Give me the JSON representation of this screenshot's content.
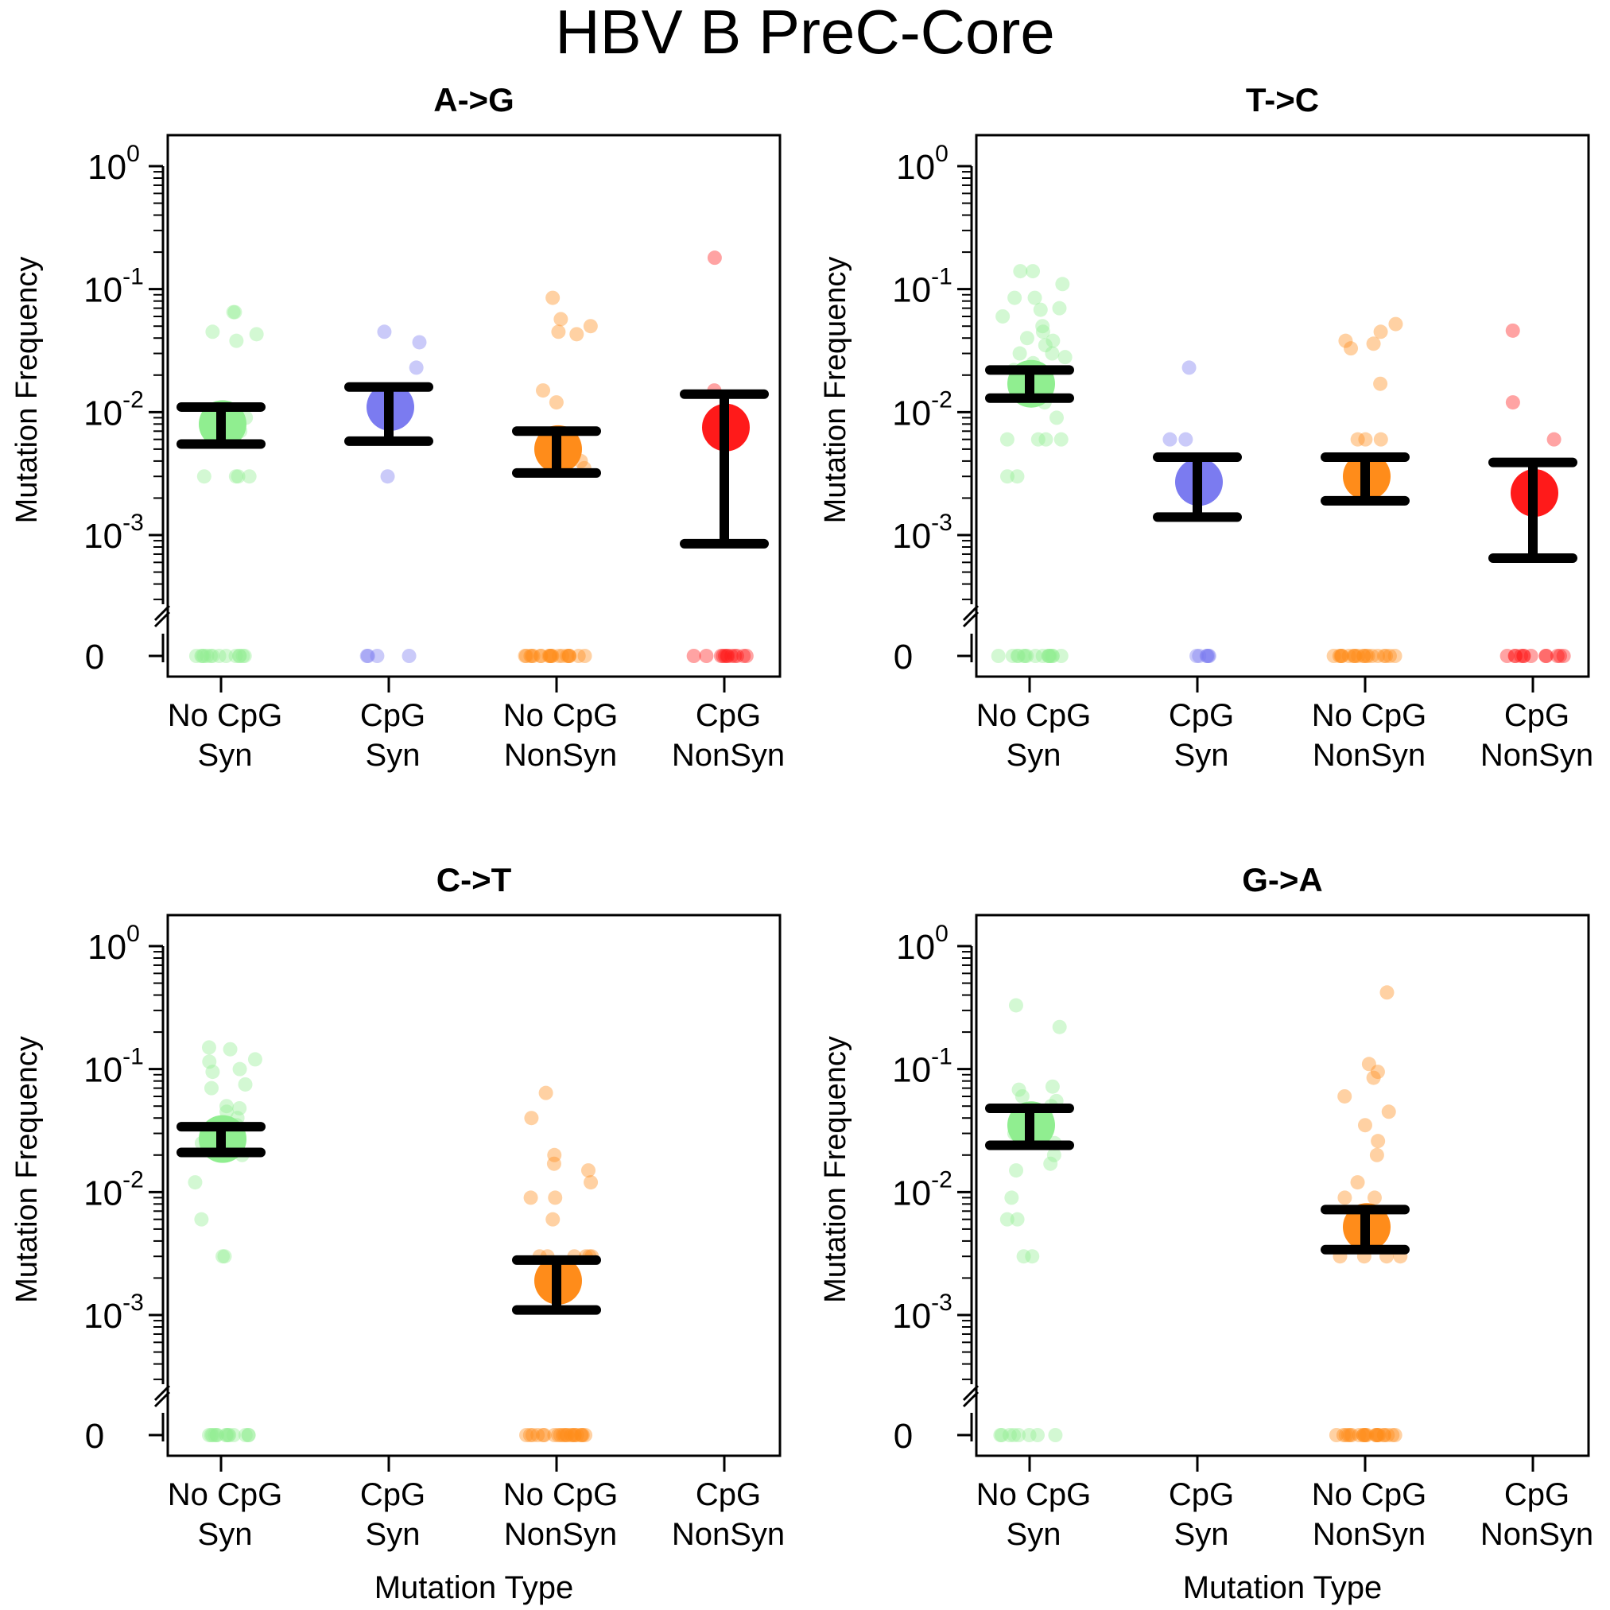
{
  "figure": {
    "title": "HBV B PreC-Core"
  },
  "style": {
    "colors": {
      "No CpG Syn": "#90ee90",
      "CpG Syn": "#7b7bf0",
      "No CpG NonSyn": "#ff8c1a",
      "CpG NonSyn": "#ff1a1a",
      "error_bar": "#000000"
    }
  },
  "chart_data": [
    {
      "type": "scatter",
      "title": "A->G",
      "xlabel": "",
      "ylabel": "Mutation Frequency",
      "yscale": "log",
      "ylim": [
        0.0003,
        1
      ],
      "yticks": [
        {
          "label_base": "10",
          "label_exp": "0"
        },
        {
          "label_base": "10",
          "label_exp": "-1"
        },
        {
          "label_base": "10",
          "label_exp": "-2"
        },
        {
          "label_base": "10",
          "label_exp": "-3"
        }
      ],
      "zero_label": "0",
      "categories": [
        "No CpG\nSyn",
        "CpG\nSyn",
        "No CpG\nNonSyn",
        "CpG\nNonSyn"
      ],
      "groups": [
        {
          "category": "No CpG Syn",
          "mean": 0.008,
          "ci": [
            0.0055,
            0.011
          ],
          "points": [
            0.065,
            0.045,
            0.065,
            0.043,
            0.038,
            0.003,
            0.003,
            0.003,
            0.003,
            0.009,
            0.007
          ],
          "zeros": 14
        },
        {
          "category": "CpG Syn",
          "mean": 0.011,
          "ci": [
            0.0058,
            0.016
          ],
          "points": [
            0.045,
            0.037,
            0.023,
            0.003,
            0.009
          ],
          "zeros": 4
        },
        {
          "category": "No CpG NonSyn",
          "mean": 0.005,
          "ci": [
            0.0032,
            0.007
          ],
          "points": [
            0.085,
            0.057,
            0.05,
            0.045,
            0.043,
            0.015,
            0.012,
            0.0035,
            0.004,
            0.006
          ],
          "zeros": 20
        },
        {
          "category": "CpG NonSyn",
          "mean": 0.0075,
          "ci": [
            0.00085,
            0.014
          ],
          "points": [
            0.18,
            0.015,
            0.009
          ],
          "zeros": 12
        }
      ]
    },
    {
      "type": "scatter",
      "title": "T->C",
      "xlabel": "",
      "ylabel": "Mutation Frequency",
      "yscale": "log",
      "ylim": [
        0.0003,
        1
      ],
      "yticks": [
        {
          "label_base": "10",
          "label_exp": "0"
        },
        {
          "label_base": "10",
          "label_exp": "-1"
        },
        {
          "label_base": "10",
          "label_exp": "-2"
        },
        {
          "label_base": "10",
          "label_exp": "-3"
        }
      ],
      "zero_label": "0",
      "categories": [
        "No CpG\nSyn",
        "CpG\nSyn",
        "No CpG\nNonSyn",
        "CpG\nNonSyn"
      ],
      "groups": [
        {
          "category": "No CpG Syn",
          "mean": 0.017,
          "ci": [
            0.013,
            0.022
          ],
          "points": [
            0.14,
            0.14,
            0.11,
            0.085,
            0.085,
            0.07,
            0.068,
            0.06,
            0.05,
            0.045,
            0.04,
            0.038,
            0.035,
            0.03,
            0.03,
            0.028,
            0.025,
            0.022,
            0.015,
            0.012,
            0.009,
            0.006,
            0.006,
            0.006,
            0.006,
            0.003,
            0.003
          ],
          "zeros": 16
        },
        {
          "category": "CpG Syn",
          "mean": 0.0027,
          "ci": [
            0.0014,
            0.0043
          ],
          "points": [
            0.023,
            0.006,
            0.006
          ],
          "zeros": 6
        },
        {
          "category": "No CpG NonSyn",
          "mean": 0.003,
          "ci": [
            0.0019,
            0.0043
          ],
          "points": [
            0.052,
            0.045,
            0.038,
            0.036,
            0.033,
            0.017,
            0.006,
            0.006,
            0.006,
            0.003,
            0.003
          ],
          "zeros": 20
        },
        {
          "category": "CpG NonSyn",
          "mean": 0.0022,
          "ci": [
            0.00065,
            0.0039
          ],
          "points": [
            0.046,
            0.012,
            0.006
          ],
          "zeros": 12
        }
      ]
    },
    {
      "type": "scatter",
      "title": "C->T",
      "xlabel": "Mutation Type",
      "ylabel": "Mutation Frequency",
      "yscale": "log",
      "ylim": [
        0.0003,
        1
      ],
      "yticks": [
        {
          "label_base": "10",
          "label_exp": "0"
        },
        {
          "label_base": "10",
          "label_exp": "-1"
        },
        {
          "label_base": "10",
          "label_exp": "-2"
        },
        {
          "label_base": "10",
          "label_exp": "-3"
        }
      ],
      "zero_label": "0",
      "categories": [
        "No CpG\nSyn",
        "CpG\nSyn",
        "No CpG\nNonSyn",
        "CpG\nNonSyn"
      ],
      "groups": [
        {
          "category": "No CpG Syn",
          "mean": 0.027,
          "ci": [
            0.021,
            0.034
          ],
          "points": [
            0.15,
            0.145,
            0.12,
            0.115,
            0.1,
            0.095,
            0.075,
            0.07,
            0.05,
            0.048,
            0.045,
            0.04,
            0.035,
            0.03,
            0.025,
            0.02,
            0.012,
            0.006,
            0.003,
            0.003
          ],
          "zeros": 14
        },
        {
          "category": "CpG Syn",
          "mean": null,
          "ci": null,
          "points": [],
          "zeros": 0
        },
        {
          "category": "No CpG NonSyn",
          "mean": 0.0019,
          "ci": [
            0.0011,
            0.0028
          ],
          "points": [
            0.064,
            0.04,
            0.02,
            0.017,
            0.015,
            0.012,
            0.009,
            0.009,
            0.006,
            0.003,
            0.003,
            0.003,
            0.003,
            0.003,
            0.003
          ],
          "zeros": 22
        },
        {
          "category": "CpG NonSyn",
          "mean": null,
          "ci": null,
          "points": [],
          "zeros": 0
        }
      ]
    },
    {
      "type": "scatter",
      "title": "G->A",
      "xlabel": "Mutation Type",
      "ylabel": "Mutation Frequency",
      "yscale": "log",
      "ylim": [
        0.0003,
        1
      ],
      "yticks": [
        {
          "label_base": "10",
          "label_exp": "0"
        },
        {
          "label_base": "10",
          "label_exp": "-1"
        },
        {
          "label_base": "10",
          "label_exp": "-2"
        },
        {
          "label_base": "10",
          "label_exp": "-3"
        }
      ],
      "zero_label": "0",
      "categories": [
        "No CpG\nSyn",
        "CpG\nSyn",
        "No CpG\nNonSyn",
        "CpG\nNonSyn"
      ],
      "groups": [
        {
          "category": "No CpG Syn",
          "mean": 0.035,
          "ci": [
            0.024,
            0.048
          ],
          "points": [
            0.33,
            0.22,
            0.072,
            0.068,
            0.06,
            0.055,
            0.05,
            0.045,
            0.04,
            0.03,
            0.025,
            0.02,
            0.017,
            0.015,
            0.009,
            0.006,
            0.006,
            0.003,
            0.003
          ],
          "zeros": 8
        },
        {
          "category": "CpG Syn",
          "mean": null,
          "ci": null,
          "points": [],
          "zeros": 0
        },
        {
          "category": "No CpG NonSyn",
          "mean": 0.0052,
          "ci": [
            0.0034,
            0.0072
          ],
          "points": [
            0.42,
            0.11,
            0.095,
            0.085,
            0.06,
            0.045,
            0.035,
            0.026,
            0.02,
            0.012,
            0.009,
            0.009,
            0.006,
            0.003,
            0.003,
            0.003,
            0.003
          ],
          "zeros": 22
        },
        {
          "category": "CpG NonSyn",
          "mean": null,
          "ci": null,
          "points": [],
          "zeros": 0
        }
      ]
    }
  ]
}
